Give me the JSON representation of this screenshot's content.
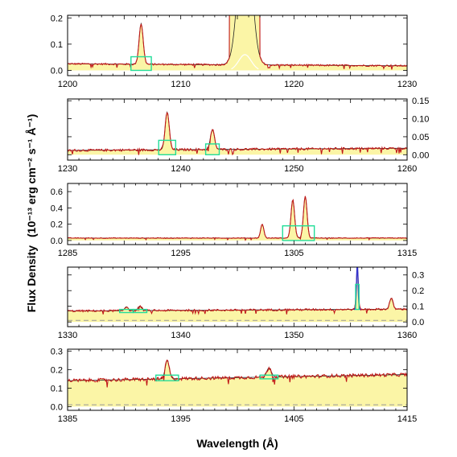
{
  "xlabel": "Wavelength (Å)",
  "ylabel": "Flux Density",
  "ylabel_units": "(10⁻¹³ erg cm⁻² s⁻¹ Å⁻¹)",
  "colors": {
    "flux": "#c01818",
    "fill": "#fbf5a6",
    "model": "#222222",
    "box": "#22dd99",
    "dash": "#999999",
    "blue": "#3333cc"
  },
  "chart_data": [
    {
      "type": "line",
      "title": "",
      "xlim": [
        1200,
        1230
      ],
      "ylim": [
        -0.02,
        0.21
      ],
      "yaxis_side": "left",
      "xticks": [
        "1200",
        "1210",
        "1220",
        "1230"
      ],
      "yticks": [
        "0.0",
        "0.1",
        "0.2"
      ],
      "continuum": 0.025,
      "continuum_slope": -0.00025,
      "noise": 0.003,
      "lines": [
        {
          "center": 1206.5,
          "height": 0.155,
          "width": 0.18
        },
        {
          "center": 1215.67,
          "height": 0.6,
          "width": 0.55,
          "saturated": true
        }
      ],
      "boxes": [
        {
          "center": 1206.5,
          "half_width": 0.9,
          "y0": 0.0,
          "y1": 0.052
        }
      ]
    },
    {
      "type": "line",
      "title": "",
      "xlim": [
        1230,
        1260
      ],
      "ylim": [
        -0.015,
        0.155
      ],
      "yaxis_side": "right",
      "xticks": [
        "1230",
        "1240",
        "1250",
        "1260"
      ],
      "yticks": [
        "0.00",
        "0.05",
        "0.10",
        "0.15"
      ],
      "continuum": 0.012,
      "continuum_slope": 0.0002,
      "noise": 0.003,
      "lines": [
        {
          "center": 1238.8,
          "height": 0.105,
          "width": 0.18
        },
        {
          "center": 1242.8,
          "height": 0.055,
          "width": 0.18
        }
      ],
      "boxes": [
        {
          "center": 1238.8,
          "half_width": 0.75,
          "y0": 0.0,
          "y1": 0.04
        },
        {
          "center": 1242.8,
          "half_width": 0.6,
          "y0": 0.0,
          "y1": 0.03
        }
      ]
    },
    {
      "type": "line",
      "title": "",
      "xlim": [
        1285,
        1315
      ],
      "ylim": [
        -0.05,
        0.7
      ],
      "yaxis_side": "left",
      "xticks": [
        "1285",
        "1295",
        "1305",
        "1315"
      ],
      "yticks": [
        "0.0",
        "0.2",
        "0.4",
        "0.6"
      ],
      "continuum": 0.03,
      "continuum_slope": 0.0,
      "noise": 0.005,
      "lines": [
        {
          "center": 1302.2,
          "height": 0.17,
          "width": 0.14
        },
        {
          "center": 1304.9,
          "height": 0.47,
          "width": 0.16
        },
        {
          "center": 1306.0,
          "height": 0.51,
          "width": 0.16
        }
      ],
      "boxes": [
        {
          "center": 1305.4,
          "half_width": 1.4,
          "y0": 0.0,
          "y1": 0.18
        }
      ]
    },
    {
      "type": "line",
      "title": "",
      "xlim": [
        1330,
        1360
      ],
      "ylim": [
        -0.03,
        0.35
      ],
      "yaxis_side": "right",
      "xticks": [
        "1330",
        "1340",
        "1350",
        "1360"
      ],
      "yticks": [
        "0.0",
        "0.1",
        "0.2",
        "0.3"
      ],
      "continuum": 0.07,
      "continuum_slope": 0.0004,
      "noise": 0.006,
      "lines": [
        {
          "center": 1335.2,
          "height": 0.025,
          "width": 0.15
        },
        {
          "center": 1336.4,
          "height": 0.03,
          "width": 0.15
        },
        {
          "center": 1355.6,
          "height": 0.26,
          "width": 0.09
        },
        {
          "center": 1358.6,
          "height": 0.07,
          "width": 0.15
        }
      ],
      "boxes": [
        {
          "center": 1335.2,
          "half_width": 0.6,
          "y0": 0.06,
          "y1": 0.08
        },
        {
          "center": 1336.4,
          "half_width": 0.6,
          "y0": 0.06,
          "y1": 0.08
        },
        {
          "center": 1355.6,
          "half_width": 0.15,
          "y0": 0.08,
          "y1": 0.24
        }
      ],
      "dashed_y": 0.01
    },
    {
      "type": "line",
      "title": "",
      "xlim": [
        1385,
        1415
      ],
      "ylim": [
        -0.02,
        0.31
      ],
      "yaxis_side": "left",
      "xticks": [
        "1385",
        "1395",
        "1405",
        "1415"
      ],
      "yticks": [
        "0.0",
        "0.1",
        "0.2",
        "0.3"
      ],
      "continuum": 0.14,
      "continuum_slope": 0.0011,
      "noise": 0.009,
      "lines": [
        {
          "center": 1393.8,
          "height": 0.1,
          "width": 0.18
        },
        {
          "center": 1402.8,
          "height": 0.05,
          "width": 0.2
        }
      ],
      "boxes": [
        {
          "center": 1393.8,
          "half_width": 1.0,
          "y0": 0.14,
          "y1": 0.17
        },
        {
          "center": 1402.8,
          "half_width": 0.8,
          "y0": 0.15,
          "y1": 0.17
        }
      ],
      "dashed_y": 0.01
    }
  ]
}
